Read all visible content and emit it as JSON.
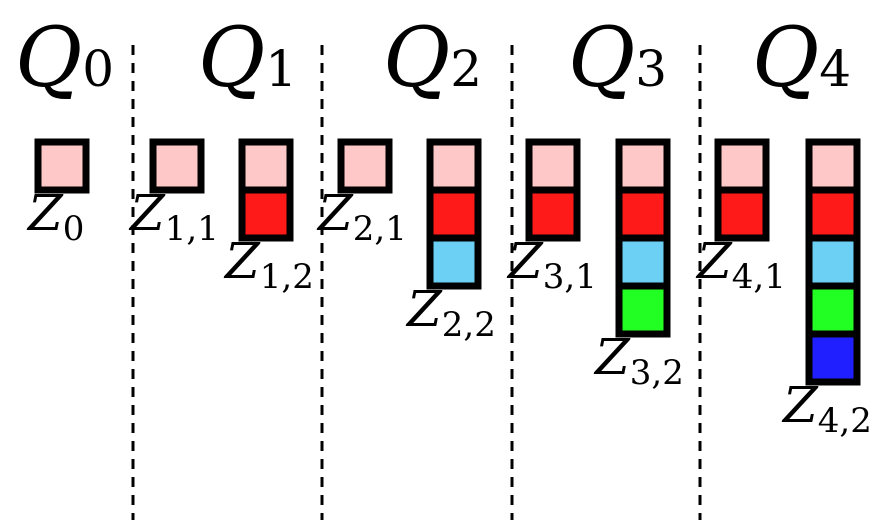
{
  "columns": [
    {
      "head": {
        "base": "Q",
        "sub": "0"
      },
      "stacks": [
        {
          "label": {
            "base": "Z",
            "sub": "0"
          },
          "cells": [
            "light-pink"
          ]
        }
      ]
    },
    {
      "head": {
        "base": "Q",
        "sub": "1"
      },
      "stacks": [
        {
          "label": {
            "base": "Z",
            "sub": "1,1"
          },
          "cells": [
            "light-pink"
          ]
        },
        {
          "label": {
            "base": "Z",
            "sub": "1,2"
          },
          "cells": [
            "light-pink",
            "red"
          ]
        }
      ]
    },
    {
      "head": {
        "base": "Q",
        "sub": "2"
      },
      "stacks": [
        {
          "label": {
            "base": "Z",
            "sub": "2,1"
          },
          "cells": [
            "light-pink"
          ]
        },
        {
          "label": {
            "base": "Z",
            "sub": "2,2"
          },
          "cells": [
            "light-pink",
            "red",
            "light-blue"
          ]
        }
      ]
    },
    {
      "head": {
        "base": "Q",
        "sub": "3"
      },
      "stacks": [
        {
          "label": {
            "base": "Z",
            "sub": "3,1"
          },
          "cells": [
            "light-pink",
            "red"
          ]
        },
        {
          "label": {
            "base": "Z",
            "sub": "3,2"
          },
          "cells": [
            "light-pink",
            "red",
            "light-blue",
            "green"
          ]
        }
      ]
    },
    {
      "head": {
        "base": "Q",
        "sub": "4"
      },
      "stacks": [
        {
          "label": {
            "base": "Z",
            "sub": "4,1"
          },
          "cells": [
            "light-pink",
            "red"
          ]
        },
        {
          "label": {
            "base": "Z",
            "sub": "4,2"
          },
          "cells": [
            "light-pink",
            "red",
            "light-blue",
            "green",
            "blue"
          ]
        }
      ]
    }
  ],
  "colors": {
    "light-pink": "#ffc8c8",
    "red": "#ff1a1a",
    "light-blue": "#6cd0f4",
    "green": "#22ff22",
    "blue": "#1f1fff",
    "border": "#000000"
  }
}
